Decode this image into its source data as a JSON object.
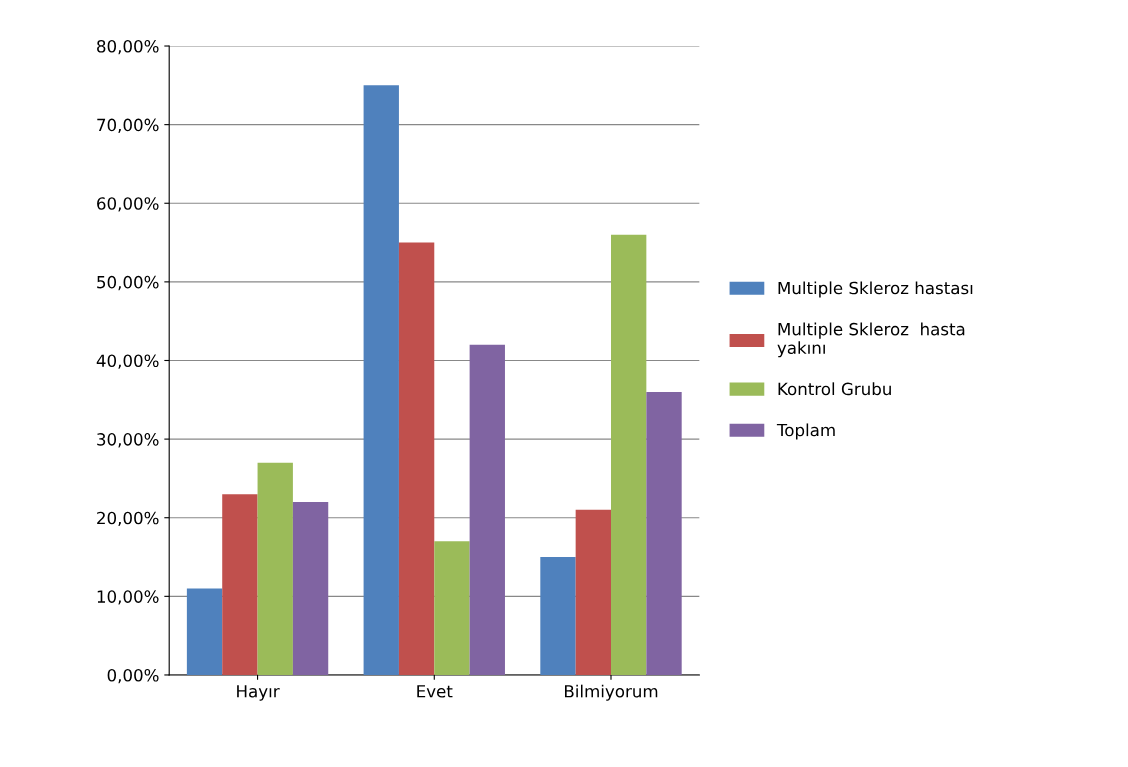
{
  "chart_data": {
    "type": "bar",
    "categories": [
      "Hayır",
      "Evet",
      "Bilmiyorum"
    ],
    "series": [
      {
        "name": "Multiple Skleroz hastası",
        "color": "#4f81bd",
        "values": [
          11,
          75,
          15
        ]
      },
      {
        "name": "Multiple Skleroz  hasta\nyakını",
        "color": "#c0504d",
        "values": [
          23,
          55,
          21
        ]
      },
      {
        "name": "Kontrol Grubu",
        "color": "#9bbb59",
        "values": [
          27,
          17,
          56
        ]
      },
      {
        "name": "Toplam",
        "color": "#8064a2",
        "values": [
          22,
          42,
          36
        ]
      }
    ],
    "ylim": [
      0,
      80
    ],
    "yticks": [
      {
        "value": 0,
        "label": "0,00%"
      },
      {
        "value": 10,
        "label": "10,00%"
      },
      {
        "value": 20,
        "label": "20,00%"
      },
      {
        "value": 30,
        "label": "30,00%"
      },
      {
        "value": 40,
        "label": "40,00%"
      },
      {
        "value": 50,
        "label": "50,00%"
      },
      {
        "value": 60,
        "label": "60,00%"
      },
      {
        "value": 70,
        "label": "70,00%"
      },
      {
        "value": 80,
        "label": "80,00%"
      }
    ],
    "grid": "y",
    "legend": "right"
  }
}
